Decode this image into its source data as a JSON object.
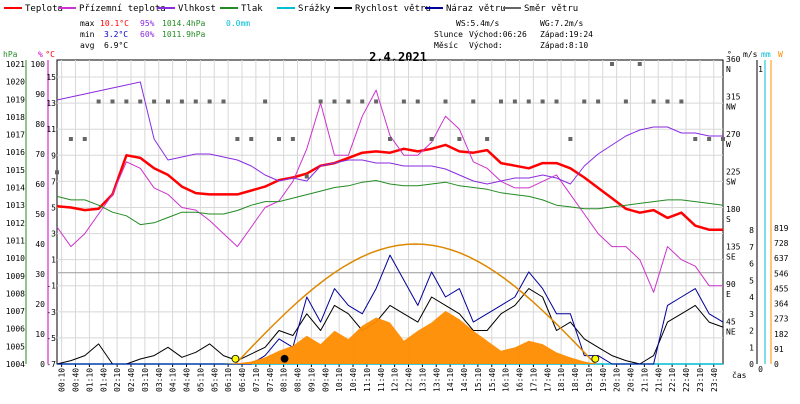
{
  "legend": [
    {
      "label": "Teplota",
      "color": "#ff0000"
    },
    {
      "label": "Přízemní teplota",
      "color": "#cc33cc"
    },
    {
      "label": "Vlhkost",
      "color": "#8a2be2"
    },
    {
      "label": "Tlak",
      "color": "#228b22"
    },
    {
      "label": "Srážky",
      "color": "#00bcd4"
    },
    {
      "label": "Rychlost větru",
      "color": "#000000"
    },
    {
      "label": "Náraz větru",
      "color": "#000099"
    },
    {
      "label": "Směr větru",
      "color": "#666666"
    }
  ],
  "stats": {
    "max": {
      "label": "max",
      "temp": "10.1°C",
      "hum": "95%",
      "press": "1014.4hPa",
      "rain": "0.0mm"
    },
    "min": {
      "label": "min",
      "temp": "3.2°C",
      "hum": "60%",
      "press": "1011.9hPa"
    },
    "avg": {
      "label": "avg",
      "temp": "6.9°C"
    },
    "ws": "WS:5.4m/s",
    "wg": "WG:7.2m/s",
    "sun": {
      "label": "Slunce",
      "rise": "Východ:06:26",
      "set": "Západ:19:24"
    },
    "moon": {
      "label": "Měsíc",
      "rise": "Východ:",
      "set": "Západ:8:10"
    }
  },
  "chart_data": {
    "type": "line",
    "title": "2.4.2021",
    "xlabel": "čas",
    "x_ticks": [
      "00:10",
      "00:40",
      "01:10",
      "01:40",
      "02:10",
      "02:40",
      "03:10",
      "03:40",
      "04:10",
      "04:40",
      "05:10",
      "05:40",
      "06:10",
      "06:40",
      "07:10",
      "07:40",
      "08:10",
      "08:40",
      "09:10",
      "09:40",
      "10:10",
      "10:40",
      "11:10",
      "11:40",
      "12:10",
      "12:40",
      "13:10",
      "13:40",
      "14:10",
      "14:40",
      "15:10",
      "15:40",
      "16:10",
      "16:40",
      "17:10",
      "17:40",
      "18:10",
      "18:40",
      "19:10",
      "19:40",
      "20:10",
      "20:40",
      "21:10",
      "21:40",
      "22:10",
      "22:40",
      "23:10",
      "23:40"
    ],
    "axes": {
      "pressure": {
        "label": "hPa",
        "color": "#228b22",
        "ticks": [
          1004,
          1005,
          1006,
          1007,
          1008,
          1009,
          1010,
          1011,
          1012,
          1013,
          1014,
          1015,
          1016,
          1017,
          1018,
          1019,
          1020,
          1021
        ]
      },
      "humidity": {
        "label": "%",
        "color": "#cc00cc",
        "ticks": [
          0,
          10,
          20,
          30,
          40,
          50,
          60,
          70,
          80,
          90,
          100
        ]
      },
      "temperature": {
        "label": "°C",
        "color": "#ff0000",
        "ticks": [
          -7,
          -5,
          -3,
          -1,
          1,
          3,
          5,
          7,
          9,
          11,
          13,
          15
        ]
      },
      "direction": {
        "label": "°",
        "color": "#000000",
        "ticks": [
          {
            "deg": "45",
            "dir": "NE"
          },
          {
            "deg": "90",
            "dir": "E"
          },
          {
            "deg": "135",
            "dir": "SE"
          },
          {
            "deg": "180",
            "dir": "S"
          },
          {
            "deg": "225",
            "dir": "SW"
          },
          {
            "deg": "270",
            "dir": "W"
          },
          {
            "deg": "315",
            "dir": "NW"
          },
          {
            "deg": "360",
            "dir": "N"
          }
        ]
      },
      "wind": {
        "label": "m/s",
        "color": "#000000",
        "ticks": [
          0,
          1,
          2,
          3,
          4,
          5,
          6,
          7,
          8
        ]
      },
      "rain": {
        "label": "mm",
        "color": "#00bcd4",
        "ticks": [
          0,
          1
        ]
      },
      "solar": {
        "label": "W",
        "color": "#ff8c00",
        "ticks": [
          0,
          91,
          182,
          273,
          364,
          455,
          546,
          637,
          728,
          819
        ]
      }
    },
    "series": [
      {
        "name": "Teplota",
        "axis": "temperature",
        "color": "#ff0000",
        "x": [
          0,
          0.5,
          1,
          1.5,
          2,
          2.5,
          3,
          3.5,
          4,
          4.5,
          5,
          5.5,
          6,
          6.5,
          7,
          7.5,
          8,
          8.5,
          9,
          9.5,
          10,
          10.5,
          11,
          11.5,
          12,
          12.5,
          13,
          13.5,
          14,
          14.5,
          15,
          15.5,
          16,
          16.5,
          17,
          17.5,
          18,
          18.5,
          19,
          19.5,
          20,
          20.5,
          21,
          21.5,
          22,
          22.5,
          23,
          23.5,
          24
        ],
        "values": [
          5.1,
          5.0,
          4.8,
          4.9,
          6.0,
          9.0,
          8.8,
          8.0,
          7.5,
          6.6,
          6.1,
          6.0,
          6.0,
          6.0,
          6.3,
          6.6,
          7.1,
          7.3,
          7.6,
          8.2,
          8.4,
          8.8,
          9.2,
          9.3,
          9.2,
          9.5,
          9.3,
          9.5,
          9.8,
          9.3,
          9.2,
          9.4,
          8.4,
          8.2,
          8.0,
          8.4,
          8.4,
          8.0,
          7.3,
          6.5,
          5.7,
          4.9,
          4.6,
          4.8,
          4.2,
          4.6,
          3.6,
          3.3,
          3.3
        ]
      },
      {
        "name": "Přízemní teplota",
        "axis": "temperature",
        "color": "#cc33cc",
        "x": [
          0,
          0.5,
          1,
          1.5,
          2,
          2.5,
          3,
          3.5,
          4,
          4.5,
          5,
          5.5,
          6,
          6.5,
          7,
          7.5,
          8,
          8.5,
          9,
          9.5,
          10,
          10.5,
          11,
          11.5,
          12,
          12.5,
          13,
          13.5,
          14,
          14.5,
          15,
          15.5,
          16,
          16.5,
          17,
          17.5,
          18,
          18.5,
          19,
          19.5,
          20,
          20.5,
          21,
          21.5,
          22,
          22.5,
          23,
          23.5,
          24
        ],
        "values": [
          3.5,
          2.0,
          3.0,
          4.5,
          6.0,
          8.5,
          8.0,
          6.5,
          6.0,
          5.0,
          4.8,
          4.0,
          3.0,
          2.0,
          3.5,
          5.0,
          5.5,
          7.0,
          9.5,
          13.0,
          9.0,
          9.0,
          12.0,
          14.0,
          10.5,
          9.0,
          9.0,
          10.0,
          12.0,
          11.0,
          8.5,
          8.0,
          7.0,
          6.5,
          6.5,
          7.0,
          7.5,
          6.0,
          4.5,
          3.0,
          2.0,
          2.0,
          1.0,
          -1.5,
          2.0,
          1.0,
          0.5,
          -1.0,
          -1.0
        ]
      },
      {
        "name": "Vlhkost",
        "axis": "humidity",
        "color": "#8a2be2",
        "x": [
          0,
          0.5,
          1,
          1.5,
          2,
          2.5,
          3,
          3.5,
          4,
          4.5,
          5,
          5.5,
          6,
          6.5,
          7,
          7.5,
          8,
          8.5,
          9,
          9.5,
          10,
          10.5,
          11,
          11.5,
          12,
          12.5,
          13,
          13.5,
          14,
          14.5,
          15,
          15.5,
          16,
          16.5,
          17,
          17.5,
          18,
          18.5,
          19,
          19.5,
          20,
          20.5,
          21,
          21.5,
          22,
          22.5,
          23,
          23.5,
          24
        ],
        "values": [
          88,
          89,
          90,
          91,
          92,
          93,
          94,
          75,
          68,
          69,
          70,
          70,
          69,
          68,
          66,
          63,
          61,
          62,
          61,
          66,
          67,
          68,
          68,
          67,
          67,
          66,
          66,
          66,
          65,
          63,
          61,
          60,
          61,
          62,
          62,
          63,
          62,
          60,
          66,
          70,
          73,
          76,
          78,
          79,
          79,
          77,
          77,
          76,
          76
        ]
      },
      {
        "name": "Tlak",
        "axis": "pressure",
        "color": "#228b22",
        "x": [
          0,
          0.5,
          1,
          1.5,
          2,
          2.5,
          3,
          3.5,
          4,
          4.5,
          5,
          5.5,
          6,
          6.5,
          7,
          7.5,
          8,
          8.5,
          9,
          9.5,
          10,
          10.5,
          11,
          11.5,
          12,
          12.5,
          13,
          13.5,
          14,
          14.5,
          15,
          15.5,
          16,
          16.5,
          17,
          17.5,
          18,
          18.5,
          19,
          19.5,
          20,
          20.5,
          21,
          21.5,
          22,
          22.5,
          23,
          23.5,
          24
        ],
        "values": [
          1013.5,
          1013.3,
          1013.3,
          1013.0,
          1012.6,
          1012.4,
          1011.9,
          1012.0,
          1012.3,
          1012.6,
          1012.6,
          1012.5,
          1012.5,
          1012.7,
          1013.0,
          1013.2,
          1013.2,
          1013.4,
          1013.6,
          1013.8,
          1014.0,
          1014.1,
          1014.3,
          1014.4,
          1014.2,
          1014.1,
          1014.1,
          1014.2,
          1014.3,
          1014.1,
          1014.0,
          1013.9,
          1013.7,
          1013.6,
          1013.5,
          1013.3,
          1013.0,
          1012.9,
          1012.8,
          1012.8,
          1012.9,
          1013.0,
          1013.1,
          1013.2,
          1013.3,
          1013.3,
          1013.2,
          1013.1,
          1013.0
        ]
      },
      {
        "name": "Srážky",
        "axis": "rain",
        "color": "#00bcd4",
        "x": [
          0,
          24
        ],
        "values": [
          0,
          0
        ]
      },
      {
        "name": "Rychlost větru",
        "axis": "wind",
        "color": "#000000",
        "x": [
          0,
          0.5,
          1,
          1.5,
          2,
          2.5,
          3,
          3.5,
          4,
          4.5,
          5,
          5.5,
          6,
          6.5,
          7,
          7.5,
          8,
          8.5,
          9,
          9.5,
          10,
          10.5,
          11,
          11.5,
          12,
          12.5,
          13,
          13.5,
          14,
          14.5,
          15,
          15.5,
          16,
          16.5,
          17,
          17.5,
          18,
          18.5,
          19,
          19.5,
          20,
          20.5,
          21,
          21.5,
          22,
          22.5,
          23,
          23.5,
          24
        ],
        "values": [
          0,
          0.2,
          0.5,
          1.2,
          0,
          0,
          0.3,
          0.5,
          1.0,
          0.4,
          0.7,
          1.2,
          0.5,
          0.2,
          0.6,
          1.0,
          2.0,
          1.7,
          3.0,
          2.0,
          3.5,
          3.0,
          2.0,
          2.5,
          3.5,
          3.0,
          2.5,
          4.0,
          3.5,
          3.0,
          2.0,
          2.0,
          3.0,
          3.5,
          4.5,
          4.0,
          2.0,
          2.5,
          1.5,
          1.0,
          0.5,
          0.2,
          0,
          0.5,
          2.5,
          3.0,
          3.5,
          2.5,
          2.2
        ]
      },
      {
        "name": "Náraz větru",
        "axis": "wind",
        "color": "#000099",
        "x": [
          0,
          0.5,
          1,
          1.5,
          2,
          2.5,
          3,
          3.5,
          4,
          4.5,
          5,
          5.5,
          6,
          6.5,
          7,
          7.5,
          8,
          8.5,
          9,
          9.5,
          10,
          10.5,
          11,
          11.5,
          12,
          12.5,
          13,
          13.5,
          14,
          14.5,
          15,
          15.5,
          16,
          16.5,
          17,
          17.5,
          18,
          18.5,
          19,
          19.5,
          20,
          20.5,
          21,
          21.5,
          22,
          22.5,
          23,
          23.5,
          24
        ],
        "values": [
          0,
          0,
          0,
          0,
          0,
          0,
          0,
          0,
          0,
          0,
          0,
          0,
          0,
          0,
          0,
          0.5,
          1.5,
          1.0,
          4.0,
          2.5,
          4.5,
          3.5,
          3.0,
          4.5,
          6.5,
          5.0,
          3.5,
          5.5,
          4.0,
          4.5,
          2.5,
          3.0,
          3.5,
          4.0,
          5.5,
          4.5,
          3.0,
          3.0,
          0.5,
          0.5,
          0,
          0,
          0,
          0,
          3.5,
          4.0,
          4.5,
          3.0,
          2.5
        ]
      },
      {
        "name": "Směr větru",
        "axis": "direction",
        "color": "#666666",
        "x": [
          0,
          0.5,
          1,
          1.5,
          2,
          2.5,
          3,
          3.5,
          4,
          4.5,
          5,
          5.5,
          6,
          6.5,
          7,
          7.5,
          8,
          8.5,
          9,
          9.5,
          10,
          10.5,
          11,
          11.5,
          12,
          12.5,
          13,
          13.5,
          14,
          14.5,
          15,
          15.5,
          16,
          16.5,
          17,
          17.5,
          18,
          18.5,
          19,
          19.5,
          20,
          20.5,
          21,
          21.5,
          22,
          22.5,
          23,
          23.5,
          24
        ],
        "values": [
          230,
          270,
          270,
          315,
          315,
          315,
          315,
          315,
          315,
          315,
          315,
          315,
          315,
          270,
          270,
          315,
          270,
          270,
          225,
          315,
          315,
          315,
          315,
          315,
          270,
          315,
          315,
          270,
          315,
          270,
          315,
          270,
          315,
          315,
          315,
          315,
          315,
          270,
          315,
          315,
          360,
          315,
          360,
          315,
          315,
          315,
          270,
          270,
          270
        ]
      },
      {
        "name": "Sluneční záření",
        "axis": "solar",
        "color": "#ff8c00",
        "fill": true,
        "x": [
          0,
          6,
          6.5,
          7,
          7.5,
          8,
          8.5,
          9,
          9.5,
          10,
          10.5,
          11,
          11.5,
          12,
          12.5,
          13,
          13.5,
          14,
          14.5,
          15,
          15.5,
          16,
          16.5,
          17,
          17.5,
          18,
          18.5,
          19,
          19.5,
          24
        ],
        "values": [
          0,
          0,
          5,
          15,
          40,
          80,
          110,
          170,
          120,
          200,
          150,
          230,
          280,
          250,
          140,
          200,
          250,
          320,
          270,
          200,
          140,
          80,
          100,
          140,
          120,
          70,
          40,
          15,
          0,
          0
        ]
      }
    ],
    "sun_curve": {
      "axis": "temperature",
      "color": "#dd8800",
      "sunrise": 6.43,
      "sunset": 19.4,
      "peak_value": 2.2,
      "base_value": -7
    },
    "markers": [
      {
        "x": 6.43,
        "value": -6.6,
        "color": "#ffff00"
      },
      {
        "x": 8.2,
        "value": -6.6,
        "color": "#000000"
      },
      {
        "x": 19.4,
        "value": -6.6,
        "color": "#ffff00"
      }
    ],
    "ref_line": {
      "axis": "temperature",
      "value": 0,
      "color": "#999999"
    }
  }
}
